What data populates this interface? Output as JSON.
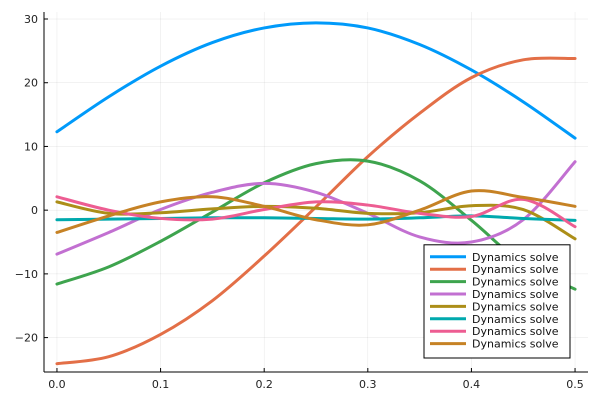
{
  "chart_data": {
    "type": "line",
    "title": "",
    "xlabel": "",
    "ylabel": "",
    "xlim": [
      -0.0125,
      0.5125
    ],
    "ylim": [
      -25.4,
      31.1
    ],
    "xticks": [
      0.0,
      0.1,
      0.2,
      0.3,
      0.4,
      0.5
    ],
    "xtick_labels": [
      "0.0",
      "0.1",
      "0.2",
      "0.3",
      "0.4",
      "0.5"
    ],
    "yticks": [
      -20,
      -10,
      0,
      10,
      20,
      30
    ],
    "ytick_labels": [
      "−20",
      "−10",
      "0",
      "10",
      "20",
      "30"
    ],
    "grid": true,
    "legend_position": "bottom-right",
    "x": [
      0.0,
      0.05,
      0.1,
      0.15,
      0.2,
      0.25,
      0.3,
      0.35,
      0.4,
      0.45,
      0.5
    ],
    "series": [
      {
        "name": "Dynamics solve",
        "color": "#009AFA",
        "values": [
          12.3,
          17.8,
          22.6,
          26.3,
          28.6,
          29.4,
          28.6,
          26.0,
          22.0,
          17.0,
          11.3
        ]
      },
      {
        "name": "Dynamics solve",
        "color": "#E36F47",
        "values": [
          -24.1,
          -23.0,
          -19.5,
          -14.2,
          -7.2,
          0.5,
          8.4,
          15.2,
          20.8,
          23.6,
          23.8
        ]
      },
      {
        "name": "Dynamics solve",
        "color": "#3EA44E",
        "values": [
          -11.6,
          -8.9,
          -4.9,
          -0.3,
          4.3,
          7.3,
          7.7,
          4.6,
          -1.6,
          -8.5,
          -12.4
        ]
      },
      {
        "name": "Dynamics solve",
        "color": "#C270D1",
        "values": [
          -6.9,
          -3.5,
          0.1,
          2.8,
          4.2,
          2.8,
          -0.5,
          -4.2,
          -5.0,
          -1.5,
          7.6
        ]
      },
      {
        "name": "Dynamics solve",
        "color": "#AC8E18",
        "values": [
          1.3,
          -0.5,
          -0.4,
          0.2,
          0.6,
          0.3,
          -0.5,
          -0.4,
          0.7,
          0.1,
          -4.5
        ]
      },
      {
        "name": "Dynamics solve",
        "color": "#00A9AD",
        "values": [
          -1.5,
          -1.4,
          -1.3,
          -1.2,
          -1.2,
          -1.3,
          -1.4,
          -1.2,
          -0.9,
          -1.3,
          -1.6
        ]
      },
      {
        "name": "Dynamics solve",
        "color": "#ED5D92",
        "values": [
          2.1,
          0.0,
          -1.3,
          -1.4,
          0.1,
          1.3,
          0.8,
          -0.5,
          -1.0,
          1.7,
          -2.6
        ]
      },
      {
        "name": "Dynamics solve",
        "color": "#C68225",
        "values": [
          -3.5,
          -0.9,
          1.3,
          2.1,
          0.6,
          -1.5,
          -2.3,
          0.0,
          3.0,
          2.0,
          0.6
        ]
      }
    ]
  }
}
